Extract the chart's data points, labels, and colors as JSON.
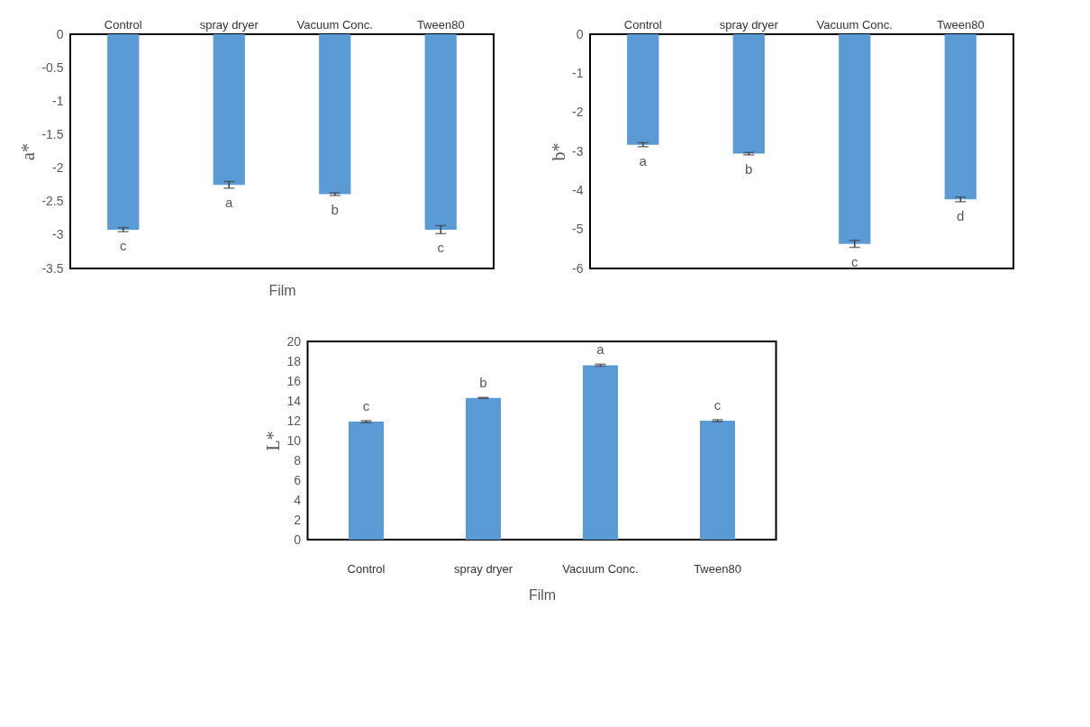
{
  "chart_data": [
    {
      "type": "bar",
      "xlabel": "Film",
      "ylabel": "a*",
      "categories": [
        "Control",
        "spray dryer",
        "Vacuum Conc.",
        "Tween80"
      ],
      "values": [
        -2.92,
        -2.25,
        -2.39,
        -2.92
      ],
      "errors": [
        0.03,
        0.05,
        0.02,
        0.06
      ],
      "color": "#5b9bd5",
      "ylim": [
        -3.5,
        0
      ],
      "yticks": [
        -3.5,
        -3,
        -2.5,
        -2,
        -1.5,
        -1,
        -0.5,
        0
      ],
      "annotations": [
        "c",
        "a",
        "b",
        "c"
      ]
    },
    {
      "type": "bar",
      "ylabel": "b*",
      "categories": [
        "Control",
        "spray dryer",
        "Vacuum Conc.",
        "Tween80"
      ],
      "values": [
        -2.83,
        -3.06,
        -5.37,
        -4.23
      ],
      "errors": [
        0.05,
        0.03,
        0.09,
        0.06
      ],
      "color": "#5b9bd5",
      "ylim": [
        -6,
        0
      ],
      "yticks": [
        -6,
        -5,
        -4,
        -3,
        -2,
        -1,
        0
      ],
      "annotations": [
        "a",
        "b",
        "c",
        "d"
      ]
    },
    {
      "type": "bar",
      "xlabel": "Film",
      "ylabel": "L*",
      "categories": [
        "Control",
        "spray dryer",
        "Vacuum Conc.",
        "Tween80"
      ],
      "values": [
        11.9,
        14.3,
        17.6,
        12.0
      ],
      "errors": [
        0.1,
        0.05,
        0.1,
        0.1
      ],
      "color": "#5b9bd5",
      "ylim": [
        0,
        20
      ],
      "yticks": [
        0,
        2,
        4,
        6,
        8,
        10,
        12,
        14,
        16,
        18,
        20
      ],
      "annotations": [
        "c",
        "b",
        "a",
        "c"
      ]
    }
  ]
}
